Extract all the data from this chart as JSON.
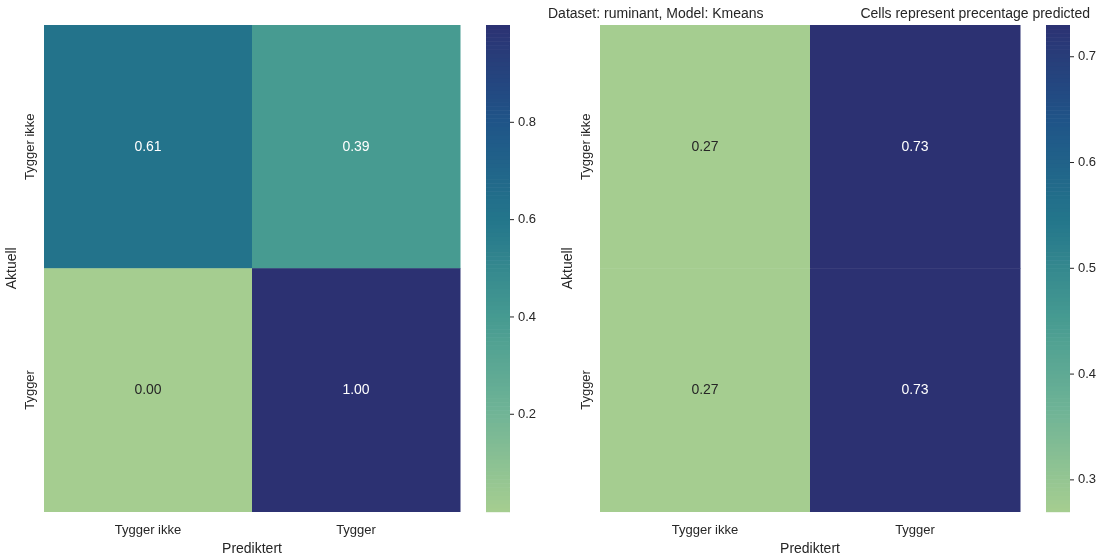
{
  "chart_data": [
    {
      "type": "heatmap",
      "xlabel": "Prediktert",
      "ylabel": "Aktuell",
      "categories": [
        "Tygger ikke",
        "Tygger"
      ],
      "y_categories": [
        "Tygger ikke",
        "Tygger"
      ],
      "cells": [
        [
          0.61,
          0.39
        ],
        [
          0.0,
          1.0
        ]
      ],
      "cell_labels": [
        [
          "0.61",
          "0.39"
        ],
        [
          "0.00",
          "1.00"
        ]
      ],
      "clim": [
        0,
        1
      ],
      "cticks": [
        0.2,
        0.4,
        0.6,
        0.8
      ]
    },
    {
      "type": "heatmap",
      "title": "Dataset: ruminant, Model: Kmeans",
      "annotations": [
        "Cells represent precentage predicted"
      ],
      "xlabel": "Prediktert",
      "ylabel": "Aktuell",
      "categories": [
        "Tygger ikke",
        "Tygger"
      ],
      "y_categories": [
        "Tygger ikke",
        "Tygger"
      ],
      "cells": [
        [
          0.27,
          0.73
        ],
        [
          0.27,
          0.73
        ]
      ],
      "cell_labels": [
        [
          "0.27",
          "0.73"
        ],
        [
          "0.27",
          "0.73"
        ]
      ],
      "clim": [
        0.27,
        0.73
      ],
      "cticks": [
        0.3,
        0.4,
        0.5,
        0.6,
        0.7
      ]
    }
  ]
}
